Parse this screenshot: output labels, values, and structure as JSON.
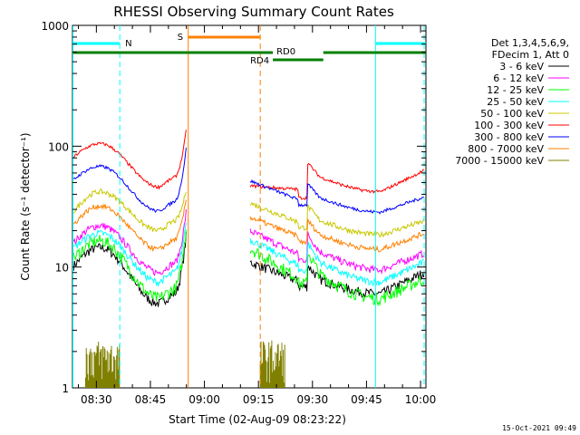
{
  "chart_data": {
    "type": "line",
    "title": "RHESSI Observing Summary Count Rates",
    "xlabel": "Start Time (02-Aug-09 08:23:22)",
    "ylabel": "Count Rate (s⁻¹ detector⁻¹)",
    "x_units": "minutes after 08:00",
    "xlim": [
      23.37,
      121.5
    ],
    "ylim": [
      1,
      1000
    ],
    "yscale": "log",
    "x_ticks": [
      {
        "x": 30,
        "label": "08:30"
      },
      {
        "x": 45,
        "label": "08:45"
      },
      {
        "x": 60,
        "label": "09:00"
      },
      {
        "x": 75,
        "label": "09:15"
      },
      {
        "x": 90,
        "label": "09:30"
      },
      {
        "x": 105,
        "label": "09:45"
      },
      {
        "x": 120,
        "label": "10:00"
      }
    ],
    "y_ticks": [
      {
        "y": 1,
        "label": "1"
      },
      {
        "y": 10,
        "label": "10"
      },
      {
        "y": 100,
        "label": "100"
      },
      {
        "y": 1000,
        "label": "1000"
      }
    ],
    "legend": {
      "placement": "right",
      "header": [
        "Det 1,3,4,5,6,9,",
        "FDecim 1, Att 0"
      ]
    },
    "series": [
      {
        "name": "3 - 6 keV",
        "color": "#000000",
        "values": {
          "s1_start": 10.0,
          "s1_peak": 14.5,
          "s1_min": 5.0,
          "s1_end": 19.0,
          "s2_start": 11.0,
          "s2_min": 6.0,
          "s2_end": 9.0
        }
      },
      {
        "name": "6 - 12 keV",
        "color": "#ff00ff",
        "values": {
          "s1_start": 15.5,
          "s1_peak": 22.0,
          "s1_min": 9.0,
          "s1_end": 30.0,
          "s2_start": 20.0,
          "s2_min": 9.5,
          "s2_end": 13.0
        }
      },
      {
        "name": "12 - 25 keV",
        "color": "#00ff00",
        "values": {
          "s1_start": 11.5,
          "s1_peak": 16.5,
          "s1_min": 5.5,
          "s1_end": 22.0,
          "s2_start": 14.5,
          "s2_min": 5.5,
          "s2_end": 8.0
        }
      },
      {
        "name": "25 - 50 keV",
        "color": "#00ffff",
        "values": {
          "s1_start": 14.0,
          "s1_peak": 19.0,
          "s1_min": 7.5,
          "s1_end": 26.0,
          "s2_start": 17.0,
          "s2_min": 7.5,
          "s2_end": 11.0
        }
      },
      {
        "name": "50 - 100 keV",
        "color": "#c8c800",
        "values": {
          "s1_start": 28.0,
          "s1_peak": 42.0,
          "s1_min": 20.0,
          "s1_end": 45.0,
          "s2_start": 34.0,
          "s2_min": 18.5,
          "s2_end": 24.0
        }
      },
      {
        "name": "100 - 300 keV",
        "color": "#ff0000",
        "values": {
          "s1_start": 80.0,
          "s1_peak": 105.0,
          "s1_min": 46.0,
          "s1_end": 140.0,
          "s2_start": 47.0,
          "s2_min": 42.0,
          "s2_end": 63.0
        }
      },
      {
        "name": "300 - 800 keV",
        "color": "#0000ff",
        "values": {
          "s1_start": 52.0,
          "s1_peak": 68.0,
          "s1_min": 29.0,
          "s1_end": 100.0,
          "s2_start": 52.0,
          "s2_min": 28.5,
          "s2_end": 38.0
        }
      },
      {
        "name": "800 - 7000 keV",
        "color": "#ff8000",
        "values": {
          "s1_start": 22.0,
          "s1_peak": 32.0,
          "s1_min": 14.0,
          "s1_end": 38.0,
          "s2_start": 26.0,
          "s2_min": 14.0,
          "s2_end": 19.0
        }
      },
      {
        "name": "7000 - 15000 keV",
        "color": "#808000",
        "values": {
          "s1_start": 2.5,
          "s1_peak": 2.5,
          "s1_min": 1.0,
          "s1_end": 1.0,
          "s2_start": 2.5,
          "s2_min": 1.0,
          "s2_end": 1.0
        }
      }
    ],
    "segments": [
      {
        "from": 23.37,
        "to": 55.0
      },
      {
        "from": 72.5,
        "to": 121.0
      }
    ],
    "annotations": {
      "night": {
        "label": "N",
        "color": "#00ffff",
        "bars": [
          {
            "from": 23.5,
            "to": 36.5
          },
          {
            "from": 107.5,
            "to": 121.5
          }
        ]
      },
      "saa": {
        "label": "S",
        "color": "#ff8000",
        "bars": [
          {
            "from": 55.5,
            "to": 75.5
          }
        ]
      },
      "decimation": {
        "color": "#008000",
        "labels": [
          "RD0",
          "RD4"
        ],
        "bars": [
          {
            "from": 23.5,
            "to": 55.5
          },
          {
            "from": 55.5,
            "to": 79.0
          },
          {
            "from": 79.0,
            "to": 93.0
          },
          {
            "from": 93.0,
            "to": 121.5
          }
        ]
      }
    },
    "vertical_lines": [
      {
        "x": 23.5,
        "color": "#00ffff",
        "style": "solid"
      },
      {
        "x": 36.5,
        "color": "#00ffff",
        "style": "dashed"
      },
      {
        "x": 55.5,
        "color": "#ff8000",
        "style": "solid"
      },
      {
        "x": 75.5,
        "color": "#ff8000",
        "style": "dashed"
      },
      {
        "x": 107.5,
        "color": "#00ffff",
        "style": "solid"
      },
      {
        "x": 121.0,
        "color": "#00ffff",
        "style": "dashed"
      }
    ],
    "timestamp": "15-Oct-2021 09:49"
  }
}
